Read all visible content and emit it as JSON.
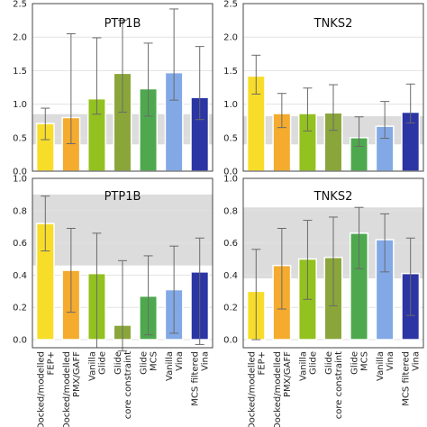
{
  "colors": {
    "band": "#dcdcdc",
    "grid": "#e2e2e2",
    "error": "#6a6a6a",
    "axis": "#444444",
    "bars": [
      "#f7dd2a",
      "#f4ab2e",
      "#93c11f",
      "#8aa63a",
      "#4ea94e",
      "#82a9e6",
      "#2b35a3"
    ]
  },
  "chart_data": [
    {
      "type": "bar",
      "title": "PTP1B",
      "categories": [
        "Docked/modelled FEP+",
        "Docked/modelled PMX/GAFF",
        "Vanilla Glide",
        "Glide core constraint",
        "Glide MCS",
        "Vanilla Vina",
        "MCS filtered Vina"
      ],
      "values": [
        0.71,
        0.8,
        1.08,
        1.46,
        1.23,
        1.47,
        1.1
      ],
      "error_low": [
        0.47,
        0.41,
        0.85,
        0.88,
        0.82,
        1.06,
        0.77
      ],
      "error_high": [
        0.94,
        2.05,
        1.99,
        2.25,
        1.91,
        2.42,
        1.86
      ],
      "shaded_band": [
        0.4,
        0.85
      ],
      "ylim": [
        0,
        2.5
      ],
      "yticks": [
        "0.0",
        "0.5",
        "1.0",
        "1.5",
        "2.0",
        "2.5"
      ],
      "grid": true
    },
    {
      "type": "bar",
      "title": "TNKS2",
      "categories": [
        "Docked/modelled FEP+",
        "Docked/modelled PMX/GAFF",
        "Vanilla Glide",
        "Glide core constraint",
        "Glide MCS",
        "Vanilla Vina",
        "MCS filtered Vina"
      ],
      "values": [
        1.42,
        0.86,
        0.86,
        0.87,
        0.5,
        0.67,
        0.88
      ],
      "error_low": [
        1.15,
        0.65,
        0.6,
        0.61,
        0.37,
        0.49,
        0.72
      ],
      "error_high": [
        1.73,
        1.16,
        1.24,
        1.29,
        0.81,
        1.04,
        1.3
      ],
      "shaded_band": [
        0.4,
        0.82
      ],
      "ylim": [
        0,
        2.5
      ],
      "yticks": [
        "0.0",
        "0.5",
        "1.0",
        "1.5",
        "2.0",
        "2.5"
      ],
      "grid": true
    },
    {
      "type": "bar",
      "title": "PTP1B",
      "categories": [
        "Docked/modelled FEP+",
        "Docked/modelled PMX/GAFF",
        "Vanilla Glide",
        "Glide core constraint",
        "Glide MCS",
        "Vanilla Vina",
        "MCS filtered Vina"
      ],
      "values": [
        0.72,
        0.43,
        0.41,
        0.09,
        0.27,
        0.31,
        0.42
      ],
      "error_low": [
        0.55,
        0.17,
        -0.05,
        -0.07,
        0.03,
        0.04,
        -0.03
      ],
      "error_high": [
        0.89,
        0.69,
        0.66,
        0.49,
        0.52,
        0.58,
        0.63
      ],
      "shaded_band": [
        0.46,
        0.9
      ],
      "ylim": [
        -0.05,
        1.0
      ],
      "yticks": [
        "0.0",
        "0.2",
        "0.4",
        "0.6",
        "0.8",
        "1.0"
      ],
      "grid": true
    },
    {
      "type": "bar",
      "title": "TNKS2",
      "categories": [
        "Docked/modelled FEP+",
        "Docked/modelled PMX/GAFF",
        "Vanilla Glide",
        "Glide core constraint",
        "Glide MCS",
        "Vanilla Vina",
        "MCS filtered Vina"
      ],
      "values": [
        0.3,
        0.46,
        0.5,
        0.51,
        0.66,
        0.62,
        0.41
      ],
      "error_low": [
        0.0,
        0.19,
        0.25,
        0.21,
        0.44,
        0.42,
        0.15
      ],
      "error_high": [
        0.56,
        0.69,
        0.74,
        0.76,
        0.82,
        0.78,
        0.63
      ],
      "shaded_band": [
        0.38,
        0.82
      ],
      "ylim": [
        -0.05,
        1.0
      ],
      "yticks": [
        "0.0",
        "0.2",
        "0.4",
        "0.6",
        "0.8",
        "1.0"
      ],
      "grid": true
    }
  ],
  "x_tick_labels": [
    [
      "Docked/modelled",
      "FEP+"
    ],
    [
      "Docked/modelled",
      "PMX/GAFF"
    ],
    [
      "Vanilla",
      "Glide"
    ],
    [
      "Glide",
      "core constraint"
    ],
    [
      "Glide",
      "MCS"
    ],
    [
      "Vanilla",
      "Vina"
    ],
    [
      "MCS filtered",
      "Vina"
    ]
  ]
}
